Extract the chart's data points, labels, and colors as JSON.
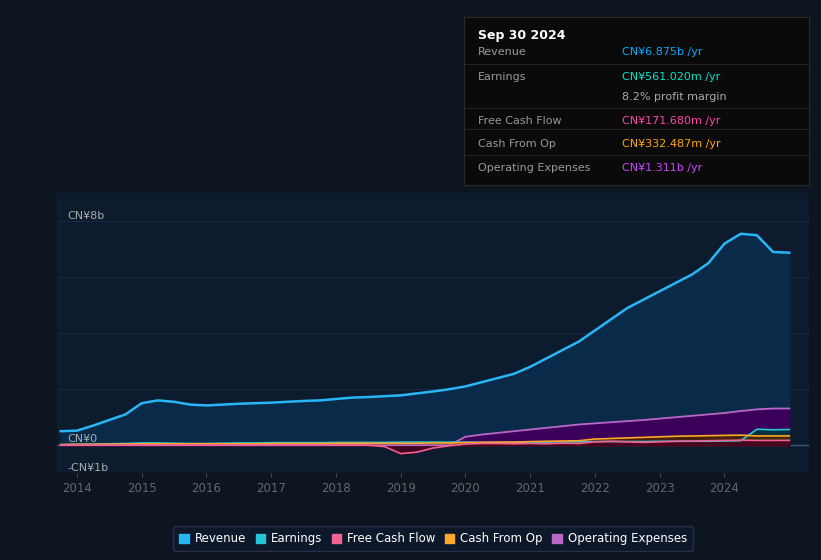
{
  "background_color": "#0d1520",
  "plot_bg_color": "#0d1b2e",
  "title": "Sep 30 2024",
  "info_box_text": {
    "title": "Sep 30 2024",
    "rows": [
      {
        "label": "Revenue",
        "value": "CN¥6.875b /yr",
        "value_color": "#00aaff"
      },
      {
        "label": "Earnings",
        "value": "CN¥561.020m /yr",
        "value_color": "#00e5cc"
      },
      {
        "label": "",
        "value": "8.2% profit margin",
        "value_color": "#aaaaaa"
      },
      {
        "label": "Free Cash Flow",
        "value": "CN¥171.680m /yr",
        "value_color": "#ff44aa"
      },
      {
        "label": "Cash From Op",
        "value": "CN¥332.487m /yr",
        "value_color": "#ffaa00"
      },
      {
        "label": "Operating Expenses",
        "value": "CN¥1.311b /yr",
        "value_color": "#cc44ff"
      }
    ]
  },
  "ylabel_top": "CN¥8b",
  "ylabel_zero": "CN¥0",
  "ylabel_neg": "-CN¥1b",
  "ylim": [
    -1.0,
    9.0
  ],
  "xlim": [
    2013.7,
    2025.3
  ],
  "xticks": [
    2014,
    2015,
    2016,
    2017,
    2018,
    2019,
    2020,
    2021,
    2022,
    2023,
    2024
  ],
  "grid_y": [
    -1,
    0,
    2,
    4,
    6,
    8
  ],
  "series": {
    "revenue": {
      "color": "#29b6f6",
      "fill": "#0a2a4a",
      "lw": 1.8
    },
    "opex": {
      "color": "#ba68c8",
      "fill": "#3a005a",
      "lw": 1.3
    },
    "earnings": {
      "color": "#26c6da",
      "fill": "#003a3a",
      "lw": 1.2
    },
    "cfo": {
      "color": "#ffa726",
      "fill": "#4a2800",
      "lw": 1.2
    },
    "fcf": {
      "color": "#f06292",
      "fill": "#4a0020",
      "lw": 1.2
    }
  },
  "data": {
    "years": [
      2013.75,
      2014.0,
      2014.25,
      2014.5,
      2014.75,
      2015.0,
      2015.25,
      2015.5,
      2015.75,
      2016.0,
      2016.25,
      2016.5,
      2016.75,
      2017.0,
      2017.25,
      2017.5,
      2017.75,
      2018.0,
      2018.25,
      2018.5,
      2018.75,
      2019.0,
      2019.25,
      2019.5,
      2019.75,
      2020.0,
      2020.25,
      2020.5,
      2020.75,
      2021.0,
      2021.25,
      2021.5,
      2021.75,
      2022.0,
      2022.25,
      2022.5,
      2022.75,
      2023.0,
      2023.25,
      2023.5,
      2023.75,
      2024.0,
      2024.25,
      2024.5,
      2024.75,
      2025.0
    ],
    "revenue": [
      0.5,
      0.52,
      0.7,
      0.9,
      1.1,
      1.5,
      1.6,
      1.55,
      1.45,
      1.42,
      1.45,
      1.48,
      1.5,
      1.52,
      1.55,
      1.58,
      1.6,
      1.65,
      1.7,
      1.72,
      1.75,
      1.78,
      1.85,
      1.92,
      2.0,
      2.1,
      2.25,
      2.4,
      2.55,
      2.8,
      3.1,
      3.4,
      3.7,
      4.1,
      4.5,
      4.9,
      5.2,
      5.5,
      5.8,
      6.1,
      6.5,
      7.2,
      7.55,
      7.5,
      6.9,
      6.875
    ],
    "earnings": [
      0.02,
      0.03,
      0.04,
      0.05,
      0.06,
      0.08,
      0.08,
      0.07,
      0.06,
      0.06,
      0.07,
      0.08,
      0.08,
      0.09,
      0.09,
      0.09,
      0.09,
      0.1,
      0.1,
      0.1,
      0.1,
      0.11,
      0.11,
      0.11,
      0.11,
      0.11,
      0.1,
      0.1,
      0.1,
      0.11,
      0.11,
      0.12,
      0.12,
      0.13,
      0.13,
      0.13,
      0.13,
      0.14,
      0.14,
      0.14,
      0.14,
      0.15,
      0.16,
      0.57,
      0.55,
      0.561
    ],
    "fcf": [
      0.01,
      0.01,
      0.01,
      0.01,
      0.01,
      0.01,
      0.01,
      0.01,
      0.01,
      0.01,
      0.01,
      0.01,
      0.01,
      0.01,
      0.01,
      0.01,
      0.01,
      0.01,
      0.01,
      0.0,
      -0.05,
      -0.3,
      -0.25,
      -0.1,
      -0.02,
      0.04,
      0.06,
      0.06,
      0.05,
      0.06,
      0.05,
      0.07,
      0.06,
      0.12,
      0.14,
      0.12,
      0.1,
      0.12,
      0.14,
      0.15,
      0.16,
      0.17,
      0.18,
      0.17,
      0.17,
      0.172
    ],
    "cfo": [
      0.02,
      0.03,
      0.03,
      0.04,
      0.04,
      0.05,
      0.05,
      0.05,
      0.05,
      0.05,
      0.05,
      0.05,
      0.05,
      0.06,
      0.06,
      0.06,
      0.06,
      0.07,
      0.07,
      0.07,
      0.07,
      0.07,
      0.07,
      0.08,
      0.08,
      0.09,
      0.1,
      0.11,
      0.11,
      0.13,
      0.14,
      0.15,
      0.16,
      0.22,
      0.24,
      0.26,
      0.28,
      0.3,
      0.32,
      0.33,
      0.34,
      0.35,
      0.36,
      0.33,
      0.33,
      0.332
    ],
    "opex": [
      0.0,
      0.0,
      0.0,
      0.0,
      0.0,
      0.0,
      0.0,
      0.0,
      0.0,
      0.0,
      0.0,
      0.0,
      0.0,
      0.0,
      0.0,
      0.0,
      0.0,
      0.0,
      0.0,
      0.0,
      0.0,
      0.0,
      0.0,
      0.0,
      0.0,
      0.3,
      0.38,
      0.44,
      0.5,
      0.56,
      0.62,
      0.68,
      0.74,
      0.78,
      0.82,
      0.86,
      0.9,
      0.95,
      1.0,
      1.05,
      1.1,
      1.15,
      1.22,
      1.28,
      1.31,
      1.311
    ]
  },
  "legend": [
    {
      "label": "Revenue",
      "color": "#29b6f6"
    },
    {
      "label": "Earnings",
      "color": "#26c6da"
    },
    {
      "label": "Free Cash Flow",
      "color": "#f06292"
    },
    {
      "label": "Cash From Op",
      "color": "#ffa726"
    },
    {
      "label": "Operating Expenses",
      "color": "#ba68c8"
    }
  ]
}
